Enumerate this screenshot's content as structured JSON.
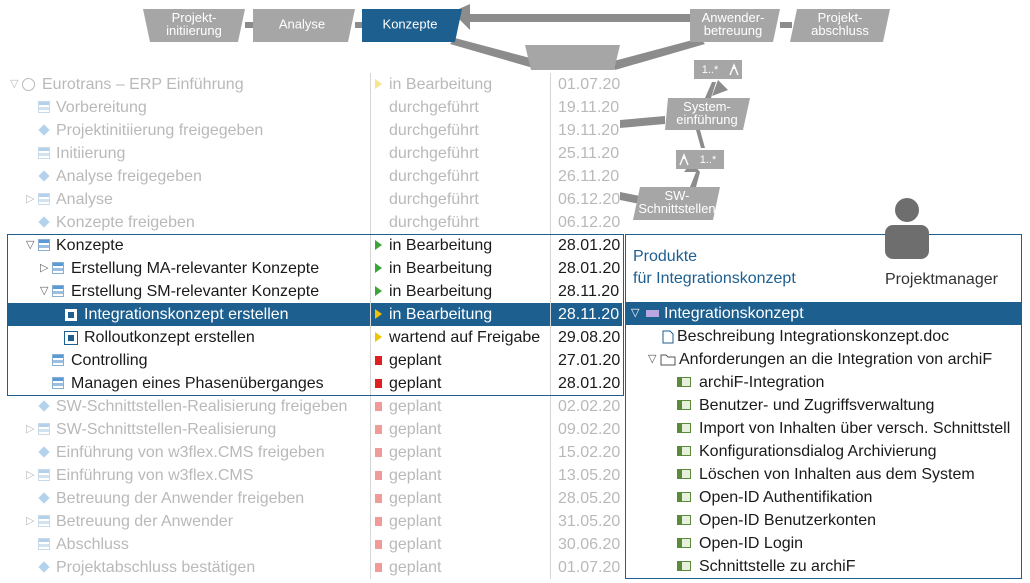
{
  "process": {
    "steps": [
      {
        "lines": [
          "Projekt-",
          "initiierung"
        ]
      },
      {
        "lines": [
          "Analyse"
        ]
      },
      {
        "lines": [
          "Konzepte"
        ]
      },
      {
        "lines": [
          "Anwender-",
          "betreuung"
        ]
      },
      {
        "lines": [
          "Projekt-",
          "abschluss"
        ]
      }
    ],
    "substeps": [
      {
        "lines": [
          "System-",
          "einführung"
        ]
      },
      {
        "lines": [
          "SW-",
          "Schnittstellen"
        ]
      }
    ],
    "multiplicities": [
      "1..*",
      "1..*"
    ]
  },
  "tree": {
    "rows": [
      [
        "Eurotrans – ERP Einführung",
        "in Bearbeitung",
        "01.07.20"
      ],
      [
        "Vorbereitung",
        "durchgeführt",
        "19.11.20"
      ],
      [
        "Projektinitiierung freigegeben",
        "durchgeführt",
        "19.11.20"
      ],
      [
        "Initiierung",
        "durchgeführt",
        "25.11.20"
      ],
      [
        "Analyse freigegeben",
        "durchgeführt",
        "26.11.20"
      ],
      [
        "Analyse",
        "durchgeführt",
        "06.12.20"
      ],
      [
        "Konzepte freigeben",
        "durchgeführt",
        "06.12.20"
      ],
      [
        "Konzepte",
        "in Bearbeitung",
        "28.01.20"
      ],
      [
        "Erstellung MA-relevanter Konzepte",
        "in Bearbeitung",
        "28.01.20"
      ],
      [
        "Erstellung SM-relevanter Konzepte",
        "in Bearbeitung",
        "28.11.20"
      ],
      [
        "Integrationskonzept erstellen",
        "in Bearbeitung",
        "28.11.20"
      ],
      [
        "Rolloutkonzept erstellen",
        "wartend auf Freigabe",
        "29.08.20"
      ],
      [
        "Controlling",
        "geplant",
        "27.01.20"
      ],
      [
        "Managen eines Phasenüberganges",
        "geplant",
        "28.01.20"
      ],
      [
        "SW-Schnittstellen-Realisierung freigeben",
        "geplant",
        "02.02.20"
      ],
      [
        "SW-Schnittstellen-Realisierung",
        "geplant",
        "09.02.20"
      ],
      [
        "Einführung von w3flex.CMS freigeben",
        "geplant",
        "15.02.20"
      ],
      [
        "Einführung von w3flex.CMS",
        "geplant",
        "13.05.20"
      ],
      [
        "Betreuung der Anwender freigeben",
        "geplant",
        "28.05.20"
      ],
      [
        "Betreuung der Anwender",
        "geplant",
        "31.05.20"
      ],
      [
        "Abschluss",
        "geplant",
        "30.06.20"
      ],
      [
        "Projektabschluss bestätigen",
        "geplant",
        "01.07.20"
      ]
    ]
  },
  "panel": {
    "title": [
      "Produkte",
      "für Integrationskonzept"
    ],
    "role": "Projektmanager",
    "product": "Integrationskonzept",
    "document": "Beschreibung Integrationskonzept.doc",
    "folder": "Anforderungen an die Integration von archiF",
    "requirements": [
      "archiF-Integration",
      "Benutzer- und Zugriffsverwaltung",
      "Import von Inhalten über versch. Schnittstell",
      "Konfigurationsdialog Archivierung",
      "Löschen von Inhalten aus dem System",
      "Open-ID Authentifikation",
      "Open-ID Benutzerkonten",
      "Open-ID Login",
      "Schnittstelle zu archiF"
    ]
  }
}
